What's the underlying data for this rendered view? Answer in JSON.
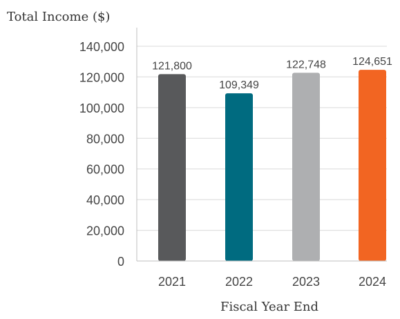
{
  "chart_data": {
    "type": "bar",
    "title": "",
    "ylabel": "Total Income ($)",
    "xlabel": "Fiscal Year End",
    "categories": [
      "2021",
      "2022",
      "2023",
      "2024"
    ],
    "values": [
      121800,
      109349,
      122748,
      124651
    ],
    "data_labels": [
      "121,800",
      "109,349",
      "122,748",
      "124,651"
    ],
    "bar_colors": [
      "#58595b",
      "#006b80",
      "#aeafb1",
      "#f26522"
    ],
    "ylim": [
      0,
      140000
    ],
    "yticks": [
      0,
      20000,
      40000,
      60000,
      80000,
      100000,
      120000,
      140000
    ],
    "ytick_labels": [
      "0",
      "20,000",
      "40,000",
      "60,000",
      "80,000",
      "100,000",
      "120,000",
      "140,000"
    ],
    "grid": "horizontal",
    "gridline_color": "#d9d9d9"
  }
}
